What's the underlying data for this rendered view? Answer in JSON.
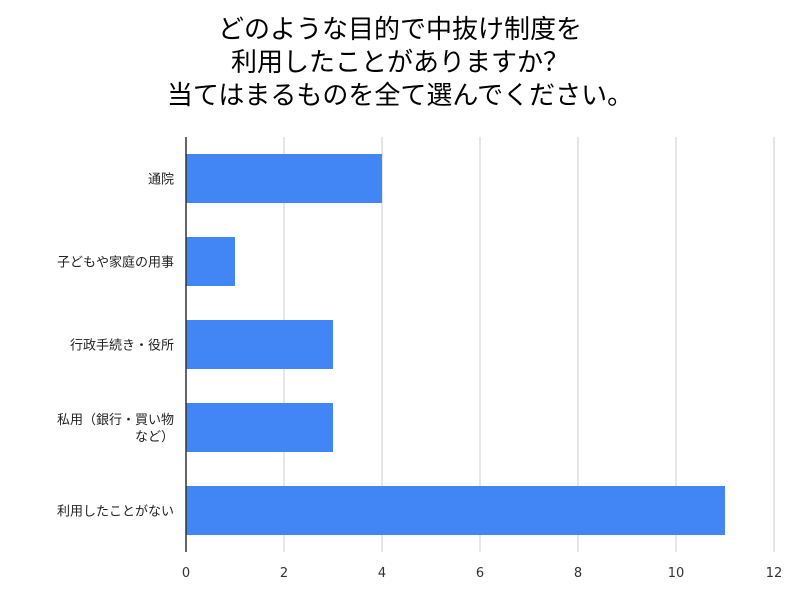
{
  "chart_data": {
    "type": "bar",
    "orientation": "horizontal",
    "title_lines": [
      "どのような目的で中抜け制度を",
      "利用したことがありますか？",
      "当てはまるものを全て選んでください。"
    ],
    "categories": [
      [
        "通院"
      ],
      [
        "子どもや家庭の用事"
      ],
      [
        "行政手続き・役所"
      ],
      [
        "私用（銀行・買い物",
        "など）"
      ],
      [
        "利用したことがない"
      ]
    ],
    "values": [
      4,
      1,
      3,
      3,
      11
    ],
    "xlim": [
      0,
      12
    ],
    "xticks": [
      "0",
      "2",
      "4",
      "6",
      "8",
      "10",
      "12"
    ],
    "grid": true,
    "legend": "none",
    "bar_color": "#4285f4",
    "grid_color": "#cccccc",
    "axis_color": "#333333"
  }
}
